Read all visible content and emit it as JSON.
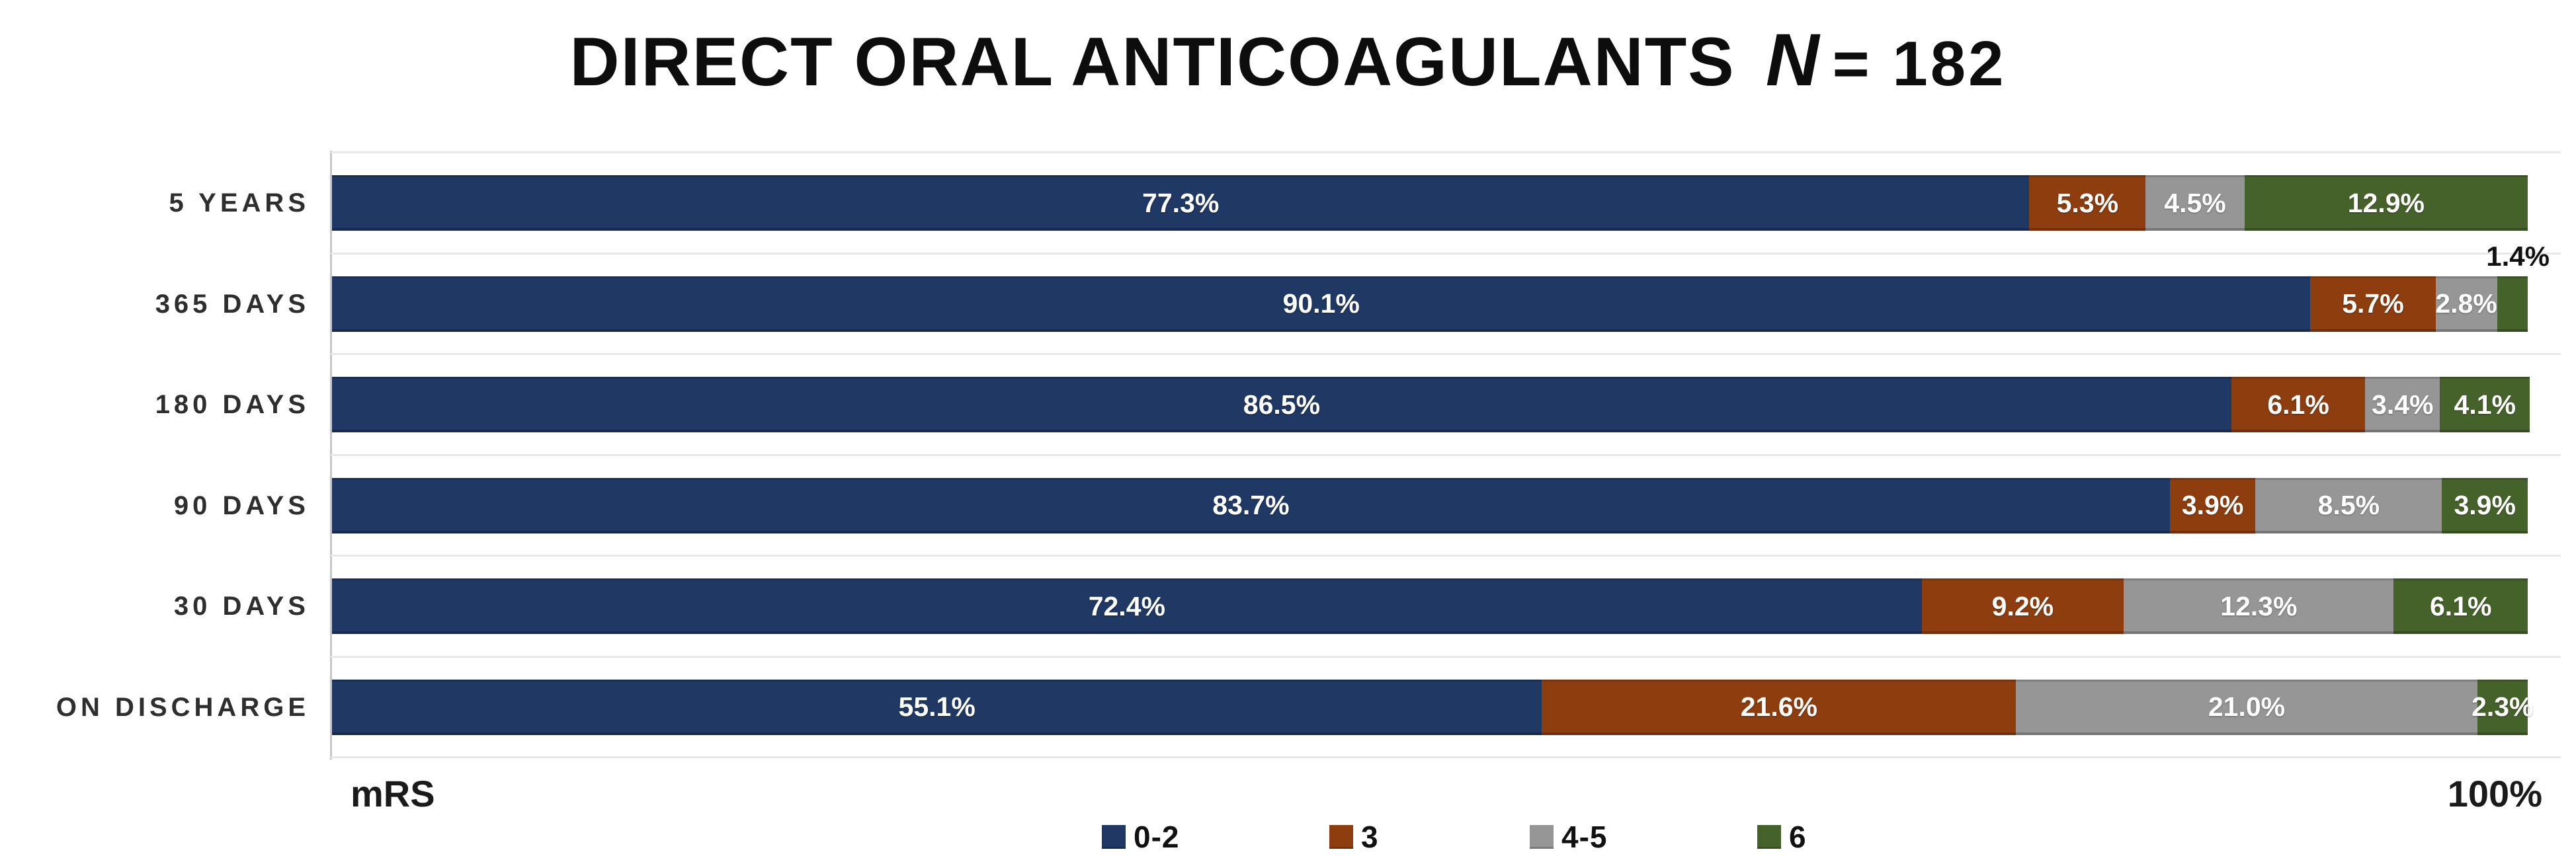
{
  "title": {
    "main": "DIRECT ORAL ANTICOAGULANTS",
    "n_symbol": "N",
    "n_value": "= 182"
  },
  "axis": {
    "x_left_label": "mRS",
    "x_right_label": "100%"
  },
  "callout": {
    "text": "1.4%"
  },
  "legend": [
    {
      "key": "0-2",
      "color": "#1F3864"
    },
    {
      "key": "3",
      "color": "#8E3D0E"
    },
    {
      "key": "4-5",
      "color": "#969696"
    },
    {
      "key": "6",
      "color": "#46622B"
    }
  ],
  "chart_data": {
    "type": "bar",
    "orientation": "horizontal-stacked",
    "title": "DIRECT ORAL ANTICOAGULANTS N = 182",
    "xlabel_left": "mRS",
    "xlabel_right": "100%",
    "xlim": [
      0,
      100
    ],
    "grid": "category-separators",
    "legend_position": "bottom-center",
    "categories": [
      "5 YEARS",
      "365 DAYS",
      "180 DAYS",
      "90 DAYS",
      "30 DAYS",
      "ON DISCHARGE"
    ],
    "series": [
      {
        "name": "0-2",
        "color": "#1F3864",
        "values": [
          77.3,
          90.1,
          86.5,
          83.7,
          72.4,
          55.1
        ]
      },
      {
        "name": "3",
        "color": "#8E3D0E",
        "values": [
          5.3,
          5.7,
          6.1,
          3.9,
          9.2,
          21.6
        ]
      },
      {
        "name": "4-5",
        "color": "#969696",
        "values": [
          4.5,
          2.8,
          3.4,
          8.5,
          12.3,
          21.0
        ]
      },
      {
        "name": "6",
        "color": "#46622B",
        "values": [
          12.9,
          1.4,
          4.1,
          3.9,
          6.1,
          2.3
        ]
      }
    ],
    "labels": [
      [
        "77.3%",
        "5.3%",
        "4.5%",
        "12.9%"
      ],
      [
        "90.1%",
        "5.7%",
        "2.8%",
        "1.4%"
      ],
      [
        "86.5%",
        "6.1%",
        "3.4%",
        "4.1%"
      ],
      [
        "83.7%",
        "3.9%",
        "8.5%",
        "3.9%"
      ],
      [
        "72.4%",
        "9.2%",
        "12.3%",
        "6.1%"
      ],
      [
        "55.1%",
        "21.6%",
        "21.0%",
        "2.3%"
      ]
    ],
    "outside_labels": [
      {
        "row": 1,
        "series": 3,
        "text": "1.4%",
        "position": "above-bar-right"
      }
    ]
  }
}
